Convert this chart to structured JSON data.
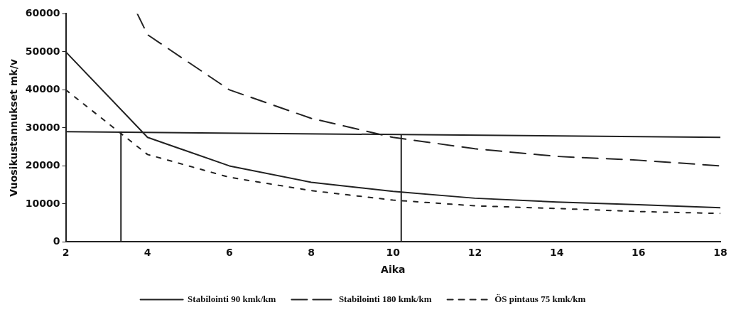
{
  "chart_data": {
    "type": "line",
    "xlabel": "Aika",
    "ylabel": "Vuosikustannukset mk/v",
    "xlim": [
      2,
      18
    ],
    "xticks": [
      2,
      4,
      6,
      8,
      10,
      12,
      14,
      16,
      18
    ],
    "ylim": [
      0,
      60000
    ],
    "yticks": [
      0,
      10000,
      20000,
      30000,
      40000,
      50000,
      60000
    ],
    "grid": false,
    "legend": "bottom",
    "marker": "none",
    "series": [
      {
        "name": "Stabilointi 90 kmk/km",
        "color": "#222222",
        "line_style": "solid",
        "x": [
          2,
          4,
          6,
          8,
          10,
          12,
          14,
          16,
          18
        ],
        "values": [
          50000,
          27500,
          20000,
          15700,
          13300,
          11500,
          10500,
          9800,
          9000
        ]
      },
      {
        "name": "Stabilointi 180 kmk/km",
        "color": "#222222",
        "line_style": "dashed",
        "x": [
          3.75,
          4,
          6,
          8,
          10,
          12,
          14,
          16,
          18
        ],
        "values": [
          60000,
          54500,
          40000,
          32500,
          27500,
          24500,
          22500,
          21500,
          20000
        ]
      },
      {
        "name": "ÖS pintaus 75 kmk/km",
        "color": "#222222",
        "line_style": "dotted",
        "x": [
          2,
          4,
          6,
          8,
          10,
          12,
          14,
          16,
          18
        ],
        "values": [
          40000,
          23000,
          17000,
          13500,
          11000,
          9500,
          8800,
          8000,
          7500
        ]
      },
      {
        "color": "#222222",
        "line_style": "solid",
        "x": [
          2,
          18
        ],
        "values": [
          29000,
          27500
        ]
      },
      {
        "color": "#222222",
        "line_style": "solid",
        "x": [
          3.35,
          3.35
        ],
        "values": [
          0,
          28900
        ]
      },
      {
        "color": "#222222",
        "line_style": "solid",
        "x": [
          10.2,
          10.2
        ],
        "values": [
          0,
          28000
        ]
      }
    ]
  }
}
